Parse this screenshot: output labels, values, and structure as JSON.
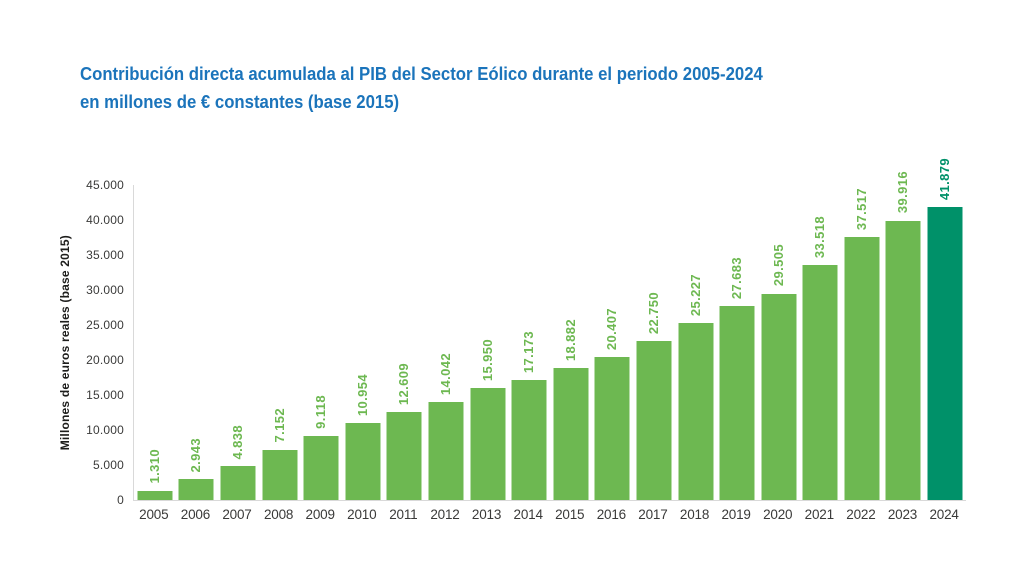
{
  "header": {
    "title_line1": "Contribución directa acumulada al PIB del Sector Eólico durante el periodo 2005-2024",
    "title_line2": "en millones de € constantes (base 2015)",
    "title_color": "#1b74bb"
  },
  "chart_data": {
    "type": "bar",
    "title": "Contribución directa acumulada al PIB del Sector Eólico durante el periodo 2005-2024 en millones de € constantes (base 2015)",
    "categories": [
      "2005",
      "2006",
      "2007",
      "2008",
      "2009",
      "2010",
      "2011",
      "2012",
      "2013",
      "2014",
      "2015",
      "2016",
      "2017",
      "2018",
      "2019",
      "2020",
      "2021",
      "2022",
      "2023",
      "2024"
    ],
    "values": [
      1310,
      2943,
      4838,
      7152,
      9118,
      10954,
      12609,
      14042,
      15950,
      17173,
      18882,
      20407,
      22750,
      25227,
      27683,
      29505,
      33518,
      37517,
      39916,
      41879
    ],
    "value_labels": [
      "1.310",
      "2.943",
      "4.838",
      "7.152",
      "9.118",
      "10.954",
      "12.609",
      "14.042",
      "15.950",
      "17.173",
      "18.882",
      "20.407",
      "22.750",
      "25.227",
      "27.683",
      "29.505",
      "33.518",
      "37.517",
      "39.916",
      "41.879"
    ],
    "xlabel": "",
    "ylabel": "Millones de euros reales (base 2015)",
    "ylim": [
      0,
      45000
    ],
    "ytick_step": 5000,
    "ytick_labels": [
      "0",
      "5.000",
      "10.000",
      "15.000",
      "20.000",
      "25.000",
      "30.000",
      "35.000",
      "40.000",
      "45.000"
    ],
    "bar_color": "#6db851",
    "highlight_color": "#009169",
    "highlight_index": 19,
    "axis_line_color": "#d9d9d9",
    "tick_text_color": "#3a3a39",
    "grid": false,
    "legend": false
  }
}
